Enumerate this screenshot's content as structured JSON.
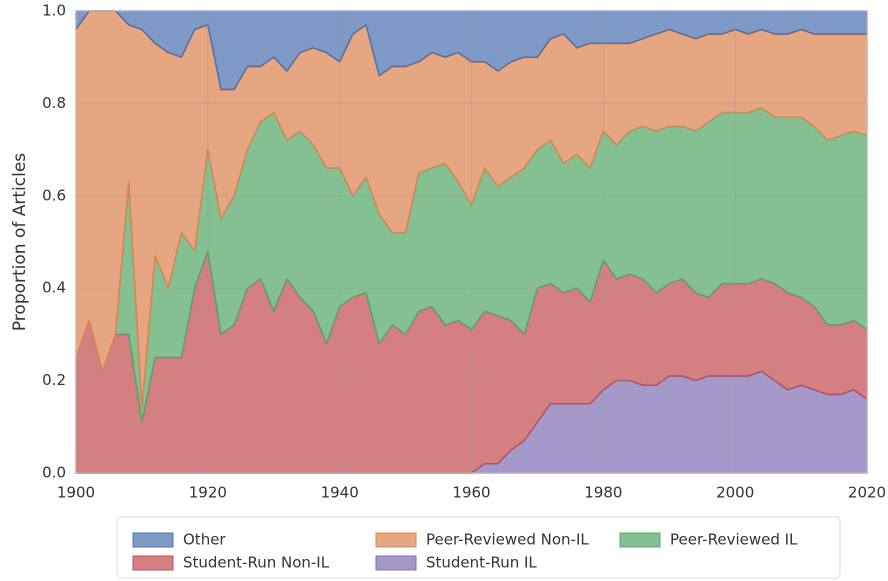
{
  "chart_data": {
    "type": "stacked_area",
    "y_label": "Proportion of Articles",
    "x": [
      1900,
      1902,
      1904,
      1906,
      1908,
      1910,
      1912,
      1914,
      1916,
      1918,
      1920,
      1922,
      1924,
      1926,
      1928,
      1930,
      1932,
      1934,
      1936,
      1938,
      1940,
      1942,
      1944,
      1946,
      1948,
      1950,
      1952,
      1954,
      1956,
      1958,
      1960,
      1962,
      1964,
      1966,
      1968,
      1970,
      1972,
      1974,
      1976,
      1978,
      1980,
      1982,
      1984,
      1986,
      1988,
      1990,
      1992,
      1994,
      1996,
      1998,
      2000,
      2002,
      2004,
      2006,
      2008,
      2010,
      2012,
      2014,
      2016,
      2018,
      2020
    ],
    "xlim": [
      1900,
      2020
    ],
    "xticks": [
      1900,
      1920,
      1940,
      1960,
      1980,
      2000,
      2020
    ],
    "ylim": [
      0,
      1
    ],
    "yticks": [
      {
        "value": 0,
        "label": "0.0"
      },
      0.2,
      0.4,
      0.6,
      0.8,
      {
        "value": 1,
        "label": "1.0"
      }
    ],
    "grid": true,
    "legend": "lower center",
    "series": [
      {
        "name": "Student-Run IL",
        "color": "#8172b3",
        "values": [
          0,
          0,
          0,
          0,
          0,
          0,
          0,
          0,
          0,
          0,
          0,
          0,
          0,
          0,
          0,
          0,
          0,
          0,
          0,
          0,
          0,
          0,
          0,
          0,
          0,
          0,
          0,
          0,
          0,
          0,
          0,
          0.02,
          0.02,
          0.05,
          0.07,
          0.11,
          0.15,
          0.15,
          0.15,
          0.15,
          0.18,
          0.2,
          0.2,
          0.19,
          0.19,
          0.21,
          0.21,
          0.2,
          0.21,
          0.21,
          0.21,
          0.21,
          0.22,
          0.2,
          0.18,
          0.19,
          0.18,
          0.17,
          0.17,
          0.18,
          0.16
        ]
      },
      {
        "name": "Student-Run Non-IL",
        "color": "#c44e52",
        "values": [
          0.25,
          0.33,
          0.22,
          0.3,
          0.3,
          0.11,
          0.25,
          0.25,
          0.25,
          0.4,
          0.48,
          0.3,
          0.32,
          0.4,
          0.42,
          0.35,
          0.42,
          0.38,
          0.35,
          0.28,
          0.36,
          0.38,
          0.39,
          0.28,
          0.32,
          0.3,
          0.35,
          0.36,
          0.32,
          0.33,
          0.31,
          0.33,
          0.32,
          0.28,
          0.23,
          0.29,
          0.26,
          0.24,
          0.25,
          0.22,
          0.28,
          0.22,
          0.23,
          0.23,
          0.2,
          0.2,
          0.21,
          0.19,
          0.17,
          0.2,
          0.2,
          0.2,
          0.2,
          0.21,
          0.21,
          0.19,
          0.18,
          0.15,
          0.15,
          0.15,
          0.15
        ]
      },
      {
        "name": "Peer-Reviewed IL",
        "color": "#55a868",
        "values": [
          0,
          0,
          0,
          0,
          0.33,
          0.03,
          0.22,
          0.15,
          0.27,
          0.08,
          0.22,
          0.25,
          0.28,
          0.3,
          0.34,
          0.43,
          0.3,
          0.36,
          0.36,
          0.38,
          0.3,
          0.22,
          0.25,
          0.28,
          0.2,
          0.22,
          0.3,
          0.3,
          0.35,
          0.3,
          0.27,
          0.31,
          0.28,
          0.31,
          0.36,
          0.3,
          0.31,
          0.28,
          0.29,
          0.29,
          0.28,
          0.29,
          0.31,
          0.33,
          0.35,
          0.34,
          0.33,
          0.35,
          0.38,
          0.37,
          0.37,
          0.37,
          0.37,
          0.36,
          0.38,
          0.39,
          0.39,
          0.4,
          0.41,
          0.41,
          0.42
        ]
      },
      {
        "name": "Peer-Reviewed Non-IL",
        "color": "#dd8452",
        "values": [
          0.71,
          0.67,
          0.78,
          0.7,
          0.34,
          0.82,
          0.46,
          0.51,
          0.38,
          0.48,
          0.27,
          0.28,
          0.23,
          0.18,
          0.12,
          0.12,
          0.15,
          0.17,
          0.21,
          0.25,
          0.23,
          0.35,
          0.33,
          0.3,
          0.36,
          0.36,
          0.24,
          0.25,
          0.23,
          0.28,
          0.31,
          0.23,
          0.25,
          0.25,
          0.24,
          0.2,
          0.22,
          0.28,
          0.23,
          0.27,
          0.19,
          0.22,
          0.19,
          0.19,
          0.21,
          0.21,
          0.2,
          0.2,
          0.19,
          0.17,
          0.18,
          0.17,
          0.17,
          0.18,
          0.18,
          0.19,
          0.2,
          0.23,
          0.22,
          0.21,
          0.22
        ]
      },
      {
        "name": "Other",
        "color": "#4c72b0",
        "values": [
          0.04,
          0,
          0,
          0,
          0.03,
          0.04,
          0.07,
          0.09,
          0.1,
          0.04,
          0.03,
          0.17,
          0.17,
          0.12,
          0.12,
          0.1,
          0.13,
          0.09,
          0.08,
          0.09,
          0.11,
          0.05,
          0.03,
          0.14,
          0.12,
          0.12,
          0.11,
          0.09,
          0.1,
          0.09,
          0.11,
          0.11,
          0.13,
          0.11,
          0.1,
          0.1,
          0.06,
          0.05,
          0.08,
          0.07,
          0.07,
          0.07,
          0.07,
          0.06,
          0.05,
          0.04,
          0.05,
          0.06,
          0.05,
          0.05,
          0.04,
          0.05,
          0.04,
          0.05,
          0.05,
          0.04,
          0.05,
          0.05,
          0.05,
          0.05,
          0.05
        ]
      }
    ]
  }
}
